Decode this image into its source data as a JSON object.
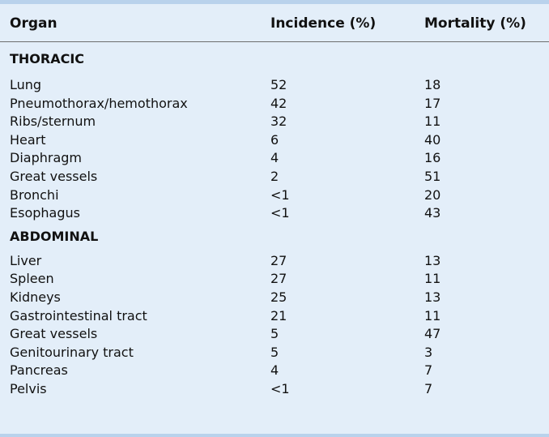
{
  "table": {
    "headers": {
      "organ": "Organ",
      "incidence": "Incidence (%)",
      "mortality": "Mortality (%)"
    },
    "sections": [
      {
        "label": "THORACIC",
        "rows": [
          {
            "organ": "Lung",
            "incidence": "52",
            "mortality": "18"
          },
          {
            "organ": "Pneumothorax/hemothorax",
            "incidence": "42",
            "mortality": "17"
          },
          {
            "organ": "Ribs/sternum",
            "incidence": "32",
            "mortality": "11"
          },
          {
            "organ": "Heart",
            "incidence": "6",
            "mortality": "40"
          },
          {
            "organ": "Diaphragm",
            "incidence": "4",
            "mortality": "16"
          },
          {
            "organ": "Great vessels",
            "incidence": "2",
            "mortality": "51"
          },
          {
            "organ": "Bronchi",
            "incidence": "<1",
            "mortality": "20"
          },
          {
            "organ": "Esophagus",
            "incidence": "<1",
            "mortality": "43"
          }
        ]
      },
      {
        "label": "ABDOMINAL",
        "rows": [
          {
            "organ": "Liver",
            "incidence": "27",
            "mortality": "13"
          },
          {
            "organ": "Spleen",
            "incidence": "27",
            "mortality": "11"
          },
          {
            "organ": "Kidneys",
            "incidence": "25",
            "mortality": "13"
          },
          {
            "organ": "Gastrointestinal tract",
            "incidence": "21",
            "mortality": "11"
          },
          {
            "organ": "Great vessels",
            "incidence": "5",
            "mortality": "47"
          },
          {
            "organ": "Genitourinary tract",
            "incidence": "5",
            "mortality": "3"
          },
          {
            "organ": "Pancreas",
            "incidence": "4",
            "mortality": "7"
          },
          {
            "organ": "Pelvis",
            "incidence": "<1",
            "mortality": "7"
          }
        ]
      }
    ]
  }
}
